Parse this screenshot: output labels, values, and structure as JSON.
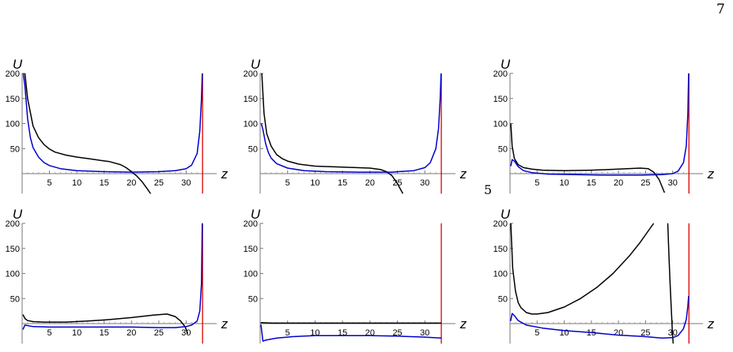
{
  "page": {
    "page_number": "7",
    "stray_mark": "5"
  },
  "chart_data": [
    {
      "type": "line",
      "xlabel": "z",
      "ylabel": "U",
      "xlim": [
        0,
        35
      ],
      "ylim": [
        -40,
        200
      ],
      "xticks": [
        5,
        10,
        15,
        20,
        25,
        30
      ],
      "yticks": [
        50,
        100,
        150,
        200
      ],
      "vertical_lines": [
        {
          "x": 33,
          "color": "#dd0000"
        }
      ],
      "series": [
        {
          "color": "#000000",
          "points": [
            [
              0.5,
              200
            ],
            [
              1,
              150
            ],
            [
              2,
              95
            ],
            [
              3,
              72
            ],
            [
              4,
              58
            ],
            [
              5,
              49
            ],
            [
              6,
              43
            ],
            [
              8,
              37
            ],
            [
              10,
              33
            ],
            [
              12,
              30
            ],
            [
              14,
              27
            ],
            [
              16,
              24
            ],
            [
              18,
              18
            ],
            [
              19,
              12
            ],
            [
              20,
              4
            ],
            [
              21,
              -5
            ],
            [
              22,
              -17
            ],
            [
              23,
              -32
            ],
            [
              23.8,
              -45
            ]
          ]
        },
        {
          "color": "#0000cc",
          "points": [
            [
              0.2,
              200
            ],
            [
              0.5,
              175
            ],
            [
              1,
              110
            ],
            [
              1.5,
              72
            ],
            [
              2,
              52
            ],
            [
              3,
              33
            ],
            [
              4,
              22
            ],
            [
              5,
              16
            ],
            [
              7,
              10
            ],
            [
              10,
              6
            ],
            [
              15,
              4
            ],
            [
              20,
              3
            ],
            [
              25,
              4
            ],
            [
              28,
              6
            ],
            [
              30,
              10
            ],
            [
              31,
              17
            ],
            [
              32,
              40
            ],
            [
              32.5,
              85
            ],
            [
              32.8,
              150
            ],
            [
              32.95,
              200
            ]
          ]
        }
      ]
    },
    {
      "type": "line",
      "xlabel": "z",
      "ylabel": "U",
      "xlim": [
        0,
        35
      ],
      "ylim": [
        -40,
        200
      ],
      "xticks": [
        5,
        10,
        15,
        20,
        25,
        30
      ],
      "yticks": [
        50,
        100,
        150,
        200
      ],
      "vertical_lines": [
        {
          "x": 33,
          "color": "#dd0000"
        }
      ],
      "series": [
        {
          "color": "#000000",
          "points": [
            [
              0.3,
              200
            ],
            [
              0.7,
              120
            ],
            [
              1.2,
              80
            ],
            [
              2,
              55
            ],
            [
              3,
              38
            ],
            [
              4,
              30
            ],
            [
              5,
              25
            ],
            [
              7,
              19
            ],
            [
              10,
              15
            ],
            [
              15,
              13
            ],
            [
              20,
              11
            ],
            [
              22,
              8
            ],
            [
              23,
              4
            ],
            [
              24,
              -4
            ],
            [
              25,
              -20
            ],
            [
              26,
              -40
            ]
          ]
        },
        {
          "color": "#0000cc",
          "points": [
            [
              0.2,
              100
            ],
            [
              0.5,
              88
            ],
            [
              1,
              60
            ],
            [
              1.5,
              42
            ],
            [
              2,
              31
            ],
            [
              3,
              20
            ],
            [
              5,
              11
            ],
            [
              8,
              6
            ],
            [
              12,
              4
            ],
            [
              18,
              3
            ],
            [
              24,
              3
            ],
            [
              28,
              6
            ],
            [
              30,
              12
            ],
            [
              31,
              22
            ],
            [
              32,
              50
            ],
            [
              32.5,
              90
            ],
            [
              32.8,
              150
            ],
            [
              32.95,
              200
            ]
          ]
        }
      ]
    },
    {
      "type": "line",
      "xlabel": "z",
      "ylabel": "U",
      "xlim": [
        0,
        35
      ],
      "ylim": [
        -40,
        200
      ],
      "xticks": [
        5,
        10,
        15,
        20,
        25,
        30
      ],
      "yticks": [
        50,
        100,
        150,
        200
      ],
      "vertical_lines": [
        {
          "x": 33,
          "color": "#dd0000"
        }
      ],
      "series": [
        {
          "color": "#000000",
          "points": [
            [
              0.15,
              100
            ],
            [
              0.4,
              55
            ],
            [
              0.8,
              30
            ],
            [
              1.5,
              18
            ],
            [
              2.5,
              12
            ],
            [
              4,
              9
            ],
            [
              6,
              7
            ],
            [
              10,
              6
            ],
            [
              15,
              7
            ],
            [
              20,
              9
            ],
            [
              24,
              11
            ],
            [
              25.5,
              10
            ],
            [
              26.5,
              3
            ],
            [
              27.5,
              -12
            ],
            [
              28.5,
              -38
            ]
          ]
        },
        {
          "color": "#0000cc",
          "points": [
            [
              0.15,
              15
            ],
            [
              0.4,
              28
            ],
            [
              0.8,
              25
            ],
            [
              1.5,
              14
            ],
            [
              2.5,
              6
            ],
            [
              4,
              2
            ],
            [
              7,
              -1
            ],
            [
              12,
              -2
            ],
            [
              18,
              -3
            ],
            [
              24,
              -3
            ],
            [
              28,
              -2
            ],
            [
              30,
              0
            ],
            [
              31,
              5
            ],
            [
              32,
              22
            ],
            [
              32.5,
              55
            ],
            [
              32.8,
              120
            ],
            [
              32.95,
              200
            ]
          ]
        }
      ]
    },
    {
      "type": "line",
      "xlabel": "z",
      "ylabel": "U",
      "xlim": [
        0,
        35
      ],
      "ylim": [
        -40,
        200
      ],
      "xticks": [
        5,
        10,
        15,
        20,
        25,
        30
      ],
      "yticks": [
        50,
        100,
        150,
        200
      ],
      "vertical_lines": [
        {
          "x": 33,
          "color": "#dd0000"
        }
      ],
      "series": [
        {
          "color": "#000000",
          "points": [
            [
              0.15,
              18
            ],
            [
              0.5,
              10
            ],
            [
              1,
              6
            ],
            [
              2,
              4
            ],
            [
              4,
              3
            ],
            [
              8,
              3
            ],
            [
              12,
              5
            ],
            [
              16,
              8
            ],
            [
              20,
              12
            ],
            [
              24,
              17
            ],
            [
              26.5,
              19
            ],
            [
              28,
              14
            ],
            [
              29,
              5
            ],
            [
              29.8,
              -6
            ],
            [
              30.3,
              -20
            ]
          ]
        },
        {
          "color": "#0000cc",
          "points": [
            [
              0.15,
              -12
            ],
            [
              0.5,
              -3
            ],
            [
              1,
              -4
            ],
            [
              2,
              -6
            ],
            [
              5,
              -7
            ],
            [
              10,
              -7
            ],
            [
              15,
              -7
            ],
            [
              20,
              -7
            ],
            [
              25,
              -8
            ],
            [
              28,
              -8
            ],
            [
              30,
              -6
            ],
            [
              31,
              -3
            ],
            [
              32,
              5
            ],
            [
              32.5,
              25
            ],
            [
              32.8,
              80
            ],
            [
              32.95,
              200
            ]
          ]
        }
      ]
    },
    {
      "type": "line",
      "xlabel": "z",
      "ylabel": "U",
      "xlim": [
        0,
        35
      ],
      "ylim": [
        -40,
        200
      ],
      "xticks": [
        5,
        10,
        15,
        20,
        25,
        30
      ],
      "yticks": [
        50,
        100,
        150,
        200
      ],
      "vertical_lines": [
        {
          "x": 33,
          "color": "#dd0000"
        }
      ],
      "series": [
        {
          "color": "#000000",
          "points": [
            [
              0.1,
              2
            ],
            [
              2,
              1
            ],
            [
              5,
              1
            ],
            [
              10,
              1
            ],
            [
              15,
              1
            ],
            [
              20,
              1
            ],
            [
              25,
              1
            ],
            [
              30,
              1
            ],
            [
              33,
              1
            ]
          ]
        },
        {
          "color": "#0000cc",
          "points": [
            [
              0.15,
              -2
            ],
            [
              0.5,
              -35
            ],
            [
              1,
              -33
            ],
            [
              3,
              -29
            ],
            [
              6,
              -26
            ],
            [
              10,
              -24
            ],
            [
              15,
              -24
            ],
            [
              20,
              -24
            ],
            [
              25,
              -25
            ],
            [
              30,
              -27
            ],
            [
              33,
              -29
            ]
          ]
        }
      ]
    },
    {
      "type": "line",
      "xlabel": "z",
      "ylabel": "U",
      "xlim": [
        0,
        35
      ],
      "ylim": [
        -40,
        200
      ],
      "xticks": [
        5,
        10,
        15,
        20,
        25,
        30
      ],
      "yticks": [
        50,
        100,
        150,
        200
      ],
      "vertical_lines": [
        {
          "x": 33,
          "color": "#dd0000"
        }
      ],
      "series": [
        {
          "color": "#000000",
          "points": [
            [
              0.15,
              200
            ],
            [
              0.5,
              110
            ],
            [
              1,
              65
            ],
            [
              1.5,
              42
            ],
            [
              2,
              32
            ],
            [
              3,
              22
            ],
            [
              4,
              19
            ],
            [
              5,
              19
            ],
            [
              7,
              22
            ],
            [
              10,
              33
            ],
            [
              13,
              50
            ],
            [
              16,
              72
            ],
            [
              19,
              100
            ],
            [
              22,
              135
            ],
            [
              24,
              162
            ],
            [
              25.5,
              185
            ],
            [
              26.5,
              200
            ]
          ]
        },
        {
          "color": "#000000",
          "points": [
            [
              29.1,
              200
            ],
            [
              29.3,
              140
            ],
            [
              29.5,
              85
            ],
            [
              29.7,
              38
            ],
            [
              29.85,
              5
            ],
            [
              29.95,
              -20
            ],
            [
              30.1,
              -40
            ]
          ]
        },
        {
          "color": "#0000cc",
          "points": [
            [
              0.1,
              5
            ],
            [
              0.4,
              20
            ],
            [
              0.8,
              16
            ],
            [
              1.5,
              6
            ],
            [
              3,
              -3
            ],
            [
              6,
              -9
            ],
            [
              10,
              -14
            ],
            [
              15,
              -18
            ],
            [
              20,
              -23
            ],
            [
              25,
              -26
            ],
            [
              28,
              -29
            ],
            [
              30,
              -28
            ],
            [
              31,
              -24
            ],
            [
              32,
              -10
            ],
            [
              32.5,
              8
            ],
            [
              32.8,
              35
            ],
            [
              32.95,
              55
            ]
          ]
        }
      ]
    }
  ]
}
